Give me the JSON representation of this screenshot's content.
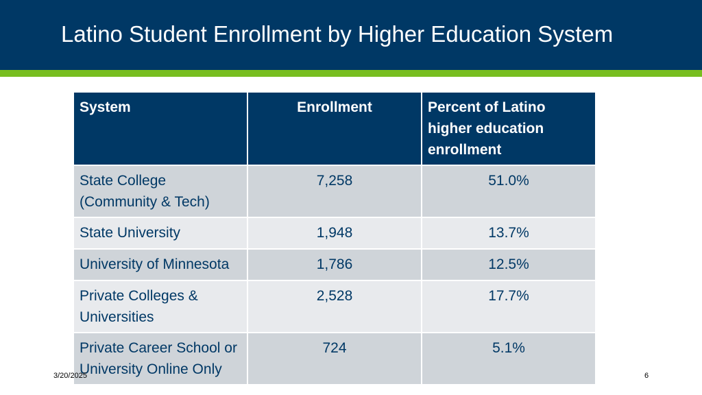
{
  "slide": {
    "title": "Latino Student Enrollment by Higher Education System",
    "date": "3/20/2025",
    "page_number": "6"
  },
  "table": {
    "headers": [
      "System",
      "Enrollment",
      "Percent of Latino higher education enrollment"
    ],
    "rows": [
      [
        "State College (Community & Tech)",
        "7,258",
        "51.0%"
      ],
      [
        "State University",
        "1,948",
        "13.7%"
      ],
      [
        "University of Minnesota",
        "1,786",
        "12.5%"
      ],
      [
        "Private Colleges & Universities",
        "2,528",
        "17.7%"
      ],
      [
        "Private Career School or University Online Only",
        "724",
        "5.1%"
      ]
    ]
  },
  "colors": {
    "header_bg": "#003865",
    "accent": "#78be20",
    "row_dark": "#cfd4d9",
    "row_light": "#e8eaed"
  }
}
